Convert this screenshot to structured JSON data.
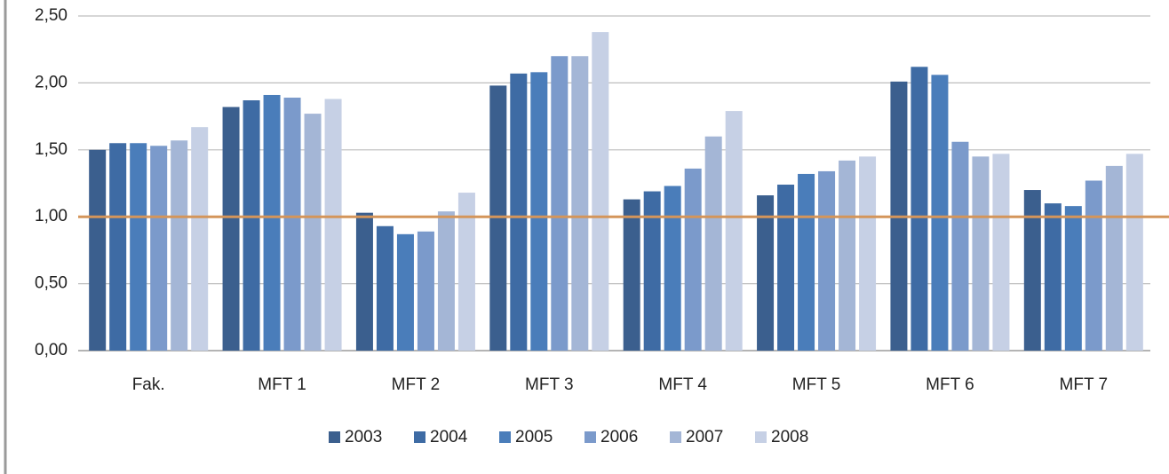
{
  "chart_data": {
    "type": "bar",
    "categories": [
      "Fak.",
      "MFT 1",
      "MFT 2",
      "MFT 3",
      "MFT 4",
      "MFT 5",
      "MFT 6",
      "MFT 7"
    ],
    "series": [
      {
        "name": "2003",
        "color": "#3b5f8e",
        "values": [
          1.5,
          1.82,
          1.03,
          1.98,
          1.13,
          1.16,
          2.01,
          1.2
        ]
      },
      {
        "name": "2004",
        "color": "#3e6ba4",
        "values": [
          1.55,
          1.87,
          0.93,
          2.07,
          1.19,
          1.24,
          2.12,
          1.1
        ]
      },
      {
        "name": "2005",
        "color": "#4a7dba",
        "values": [
          1.55,
          1.91,
          0.87,
          2.08,
          1.23,
          1.32,
          2.06,
          1.08
        ]
      },
      {
        "name": "2006",
        "color": "#7b9acb",
        "values": [
          1.53,
          1.89,
          0.89,
          2.2,
          1.36,
          1.34,
          1.56,
          1.27
        ]
      },
      {
        "name": "2007",
        "color": "#a4b6d6",
        "values": [
          1.57,
          1.77,
          1.04,
          2.2,
          1.6,
          1.42,
          1.45,
          1.38
        ]
      },
      {
        "name": "2008",
        "color": "#c6d0e5",
        "values": [
          1.67,
          1.88,
          1.18,
          2.38,
          1.79,
          1.45,
          1.47,
          1.47
        ]
      }
    ],
    "ylim": [
      0,
      2.5
    ],
    "yticks": [
      {
        "value": 0,
        "label": "0,00"
      },
      {
        "value": 0.5,
        "label": "0,50"
      },
      {
        "value": 1,
        "label": "1,00"
      },
      {
        "value": 1.5,
        "label": "1,50"
      },
      {
        "value": 2,
        "label": "2,00"
      },
      {
        "value": 2.5,
        "label": "2,50"
      }
    ],
    "grid": true,
    "reference_line": {
      "value": 1,
      "color": "#d4955a"
    },
    "legend": "bottom"
  }
}
